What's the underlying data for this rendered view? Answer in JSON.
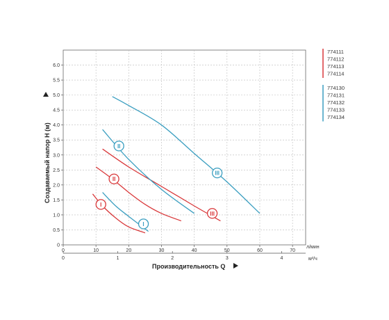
{
  "chart_data": {
    "type": "line",
    "xlabel": "Производительность Q",
    "ylabel": "Создаваемый напор H (м)",
    "x_unit": "л/мин",
    "x2_unit": "м³/ч",
    "x_ticks": [
      "0",
      "10",
      "20",
      "30",
      "40",
      "50",
      "60",
      "70"
    ],
    "x2_ticks": [
      "0",
      "1",
      "2",
      "3",
      "4"
    ],
    "y_ticks": [
      "0",
      "0.5",
      "1.0",
      "1.5",
      "2.0",
      "2.5",
      "3.0",
      "3.5",
      "4.0",
      "4.5",
      "5.0",
      "5.5",
      "6.0"
    ],
    "xlim": [
      0,
      74
    ],
    "ylim": [
      0,
      6.5
    ],
    "grid": true,
    "colors": {
      "red": "#d9383a",
      "blue": "#3a9ec0"
    },
    "legend_groups": [
      {
        "color": "red",
        "labels": [
          "774111",
          "774112",
          "774113",
          "774114"
        ]
      },
      {
        "color": "blue",
        "labels": [
          "774130",
          "774131",
          "774132",
          "774133",
          "774134"
        ]
      }
    ],
    "series": [
      {
        "group": "red",
        "marker": "I",
        "marker_at": [
          11.5,
          1.35
        ],
        "x": [
          9,
          12,
          16,
          20,
          25
        ],
        "y": [
          1.7,
          1.3,
          0.9,
          0.6,
          0.4
        ]
      },
      {
        "group": "red",
        "marker": "II",
        "marker_at": [
          15.5,
          2.2
        ],
        "x": [
          10,
          15,
          20,
          25,
          30,
          36
        ],
        "y": [
          2.6,
          2.2,
          1.75,
          1.35,
          1.05,
          0.8
        ]
      },
      {
        "group": "red",
        "marker": "III",
        "marker_at": [
          45.5,
          1.05
        ],
        "x": [
          12,
          20,
          30,
          40,
          48
        ],
        "y": [
          3.2,
          2.6,
          1.95,
          1.3,
          0.8
        ]
      },
      {
        "group": "blue",
        "marker": "I",
        "marker_at": [
          24.5,
          0.7
        ],
        "x": [
          12,
          16,
          20,
          26
        ],
        "y": [
          1.75,
          1.3,
          0.95,
          0.45
        ]
      },
      {
        "group": "blue",
        "marker": "II",
        "marker_at": [
          17,
          3.3
        ],
        "x": [
          12,
          20,
          30,
          40
        ],
        "y": [
          3.85,
          2.85,
          1.85,
          1.05
        ]
      },
      {
        "group": "blue",
        "marker": "III",
        "marker_at": [
          47,
          2.4
        ],
        "x": [
          15,
          20,
          30,
          40,
          50,
          60
        ],
        "y": [
          4.95,
          4.65,
          4.0,
          3.05,
          2.1,
          1.05
        ]
      }
    ]
  }
}
